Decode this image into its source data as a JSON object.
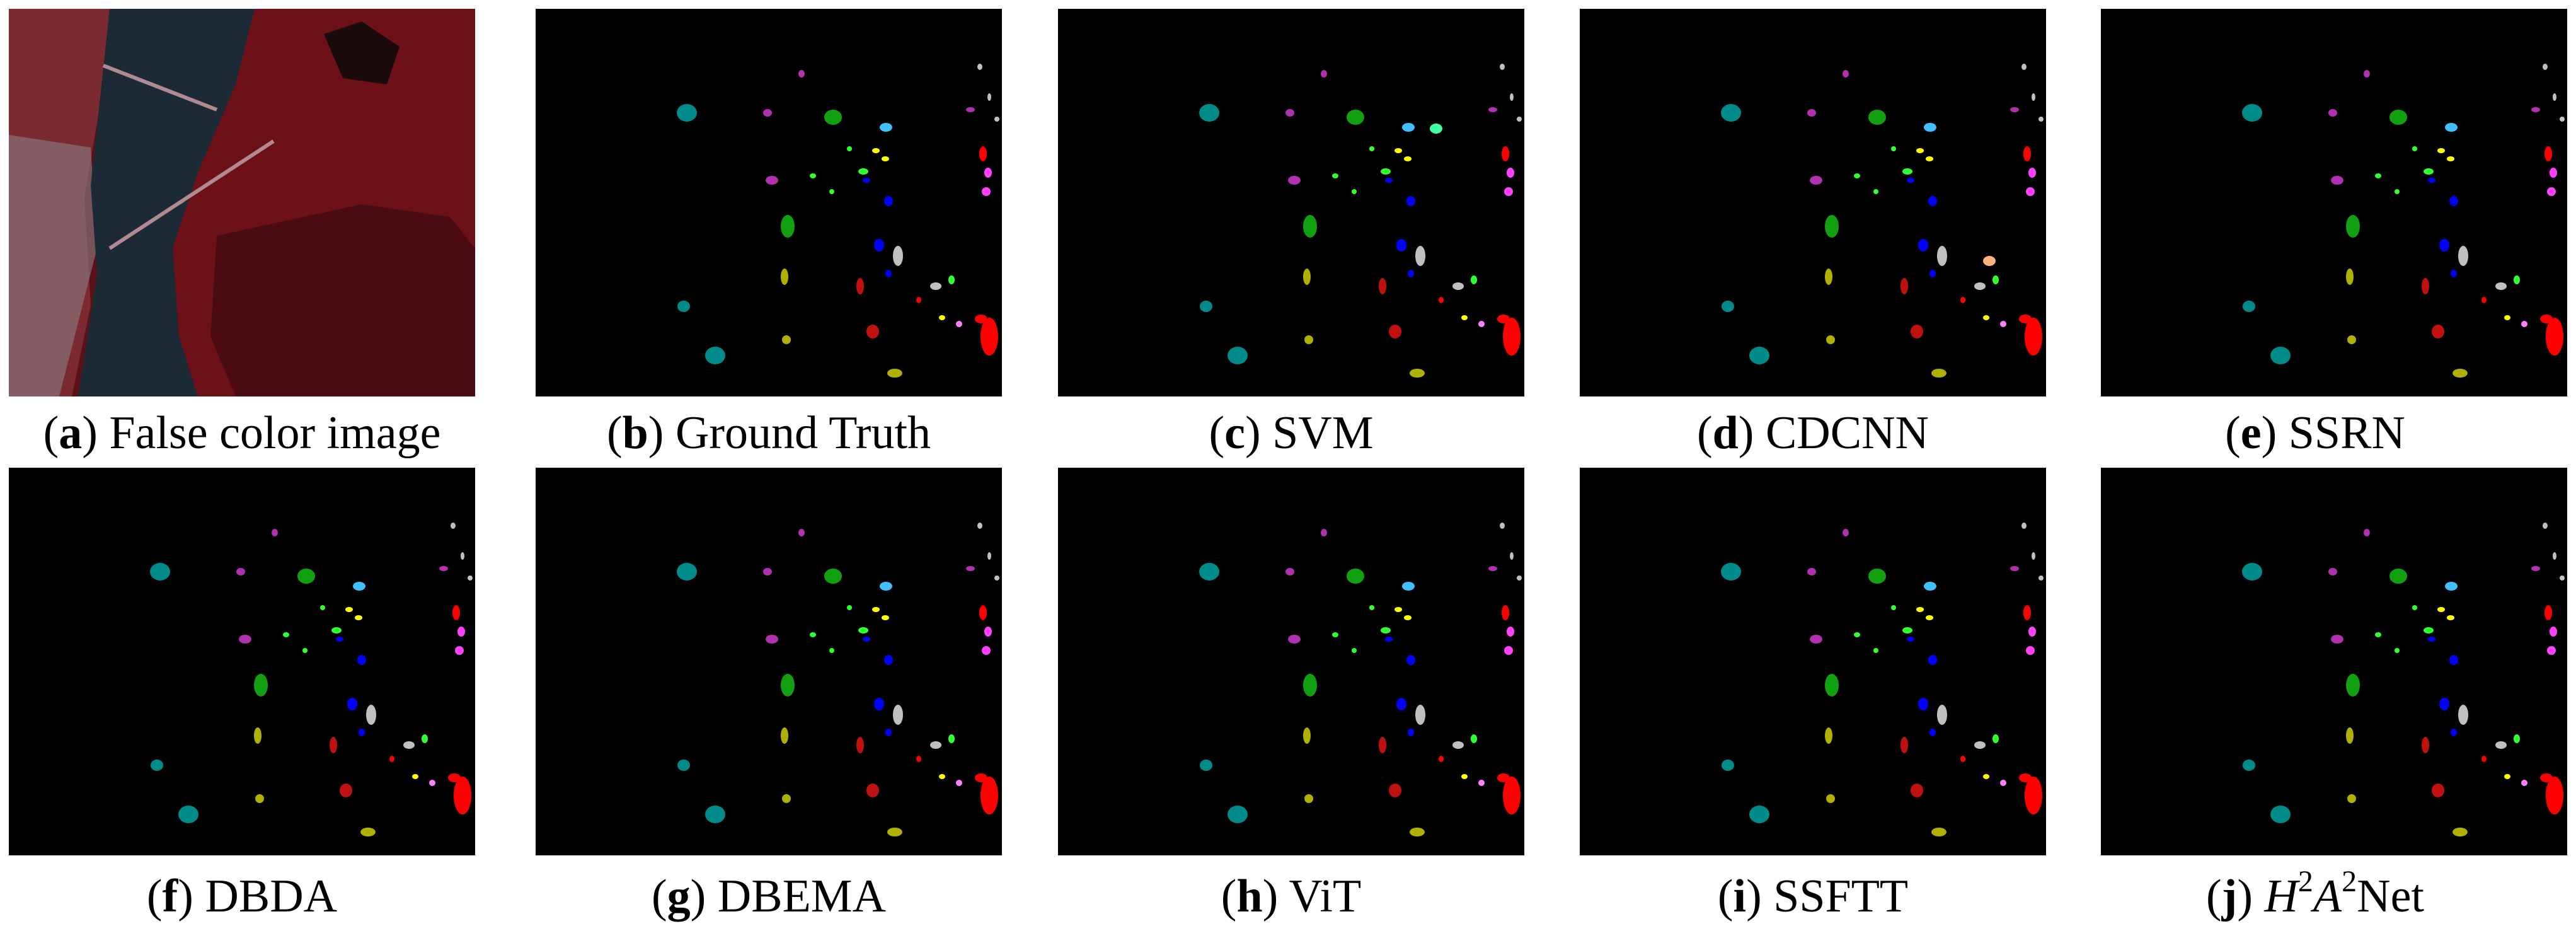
{
  "figure": {
    "panels": [
      {
        "letter": "a",
        "title": "False color image",
        "kind": "false-color-image"
      },
      {
        "letter": "b",
        "title": "Ground Truth",
        "kind": "classification-map"
      },
      {
        "letter": "c",
        "title": "SVM",
        "kind": "classification-map"
      },
      {
        "letter": "d",
        "title": "CDCNN",
        "kind": "classification-map"
      },
      {
        "letter": "e",
        "title": "SSRN",
        "kind": "classification-map"
      },
      {
        "letter": "f",
        "title": "DBDA",
        "kind": "classification-map"
      },
      {
        "letter": "g",
        "title": "DBEMA",
        "kind": "classification-map"
      },
      {
        "letter": "h",
        "title": "ViT",
        "kind": "classification-map"
      },
      {
        "letter": "i",
        "title": "SSFTT",
        "kind": "classification-map"
      },
      {
        "letter": "j",
        "title_parts": [
          "H",
          "2",
          "A",
          "2",
          "Net"
        ],
        "kind": "classification-map"
      }
    ],
    "class_colors": [
      "#008b8b",
      "#b030b0",
      "#ff40ff",
      "#10a010",
      "#30ff30",
      "#0000ff",
      "#ffff00",
      "#b0b000",
      "#c01010",
      "#ff0000",
      "#c0c0c0",
      "#40c0ff",
      "#ff80ff"
    ]
  }
}
